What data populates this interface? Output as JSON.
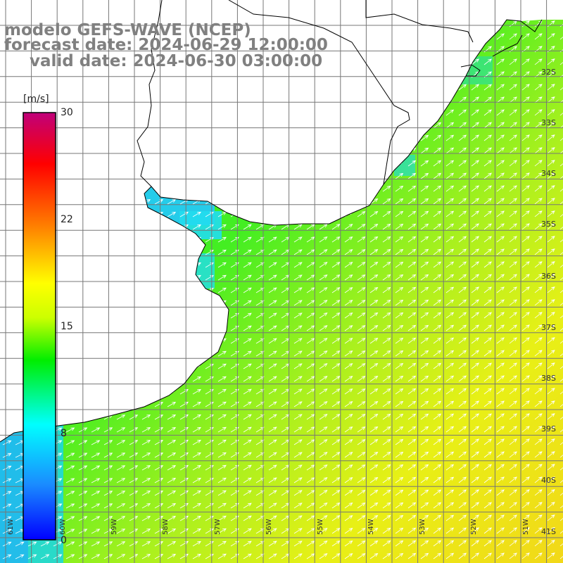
{
  "header": {
    "title_line1": "modelo GEFS-WAVE (NCEP)",
    "title_line2": "forecast date: 2024-06-29 12:00:00",
    "title_line3": "valid date: 2024-06-30 03:00:00"
  },
  "colorbar": {
    "unit": "[m/s]",
    "ticks": [
      "30",
      "22",
      "15",
      "8",
      "0"
    ],
    "colors": [
      "#0000ff",
      "#1a8cff",
      "#00ffff",
      "#00ee00",
      "#ffff00",
      "#ff7a00",
      "#ff0000",
      "#c0007a"
    ]
  },
  "lat_labels": [
    "32S",
    "33S",
    "34S",
    "35S",
    "36S",
    "37S",
    "38S",
    "39S",
    "40S",
    "41S"
  ],
  "lon_labels": [
    "61W",
    "60W",
    "59W",
    "58W",
    "57W",
    "56W",
    "55W",
    "54W",
    "53W",
    "52W",
    "51W"
  ],
  "colors": {
    "land": "#ffffff",
    "coast": "#000000",
    "grid": "#777777",
    "arrow": "#ffffff",
    "title": "#808080"
  }
}
